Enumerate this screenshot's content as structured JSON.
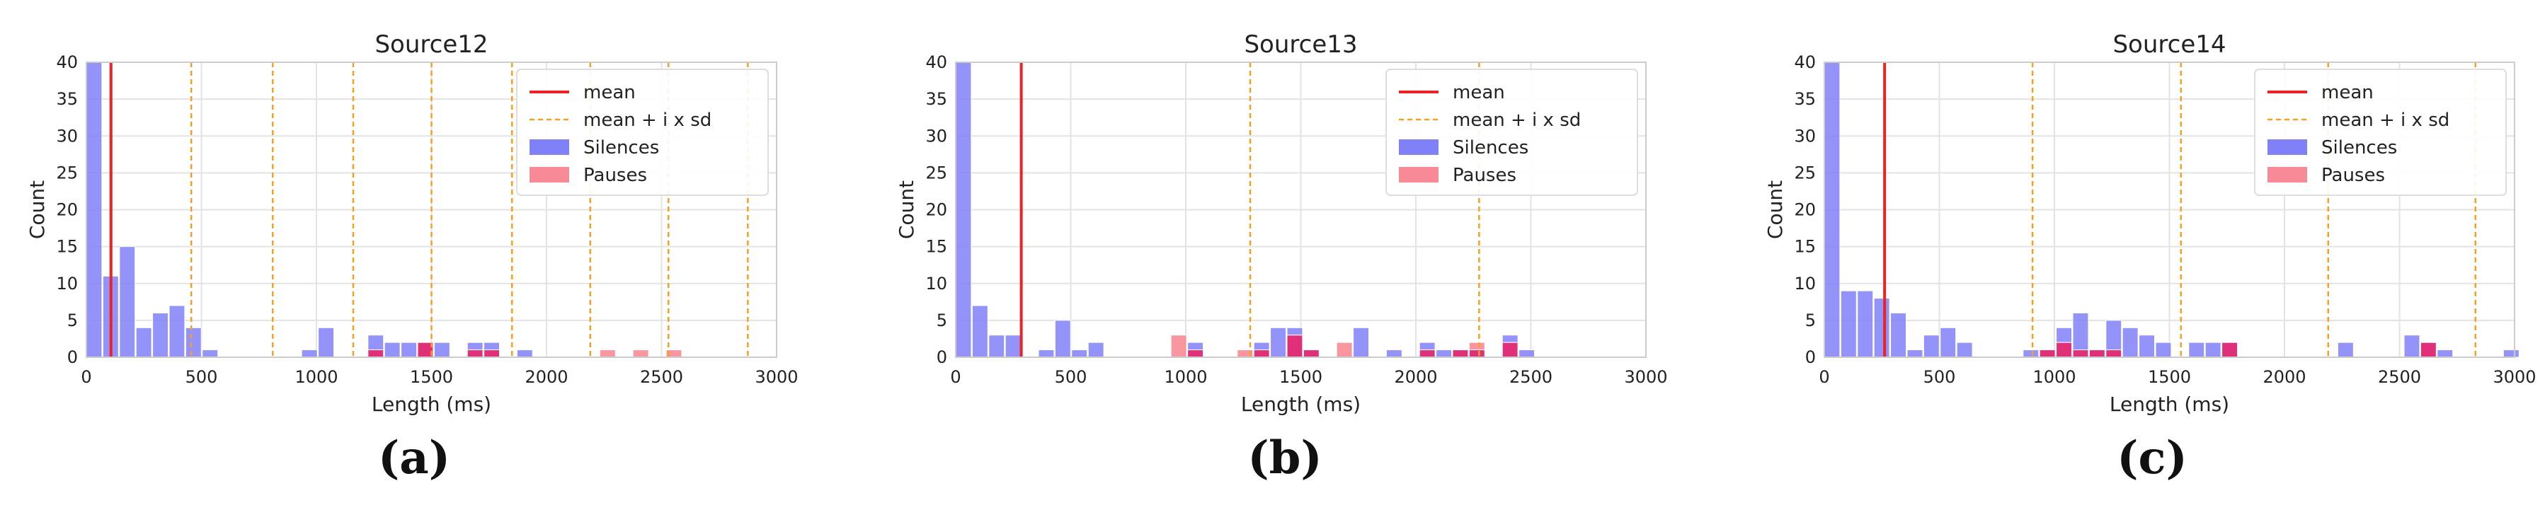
{
  "chart_data": [
    {
      "type": "bar",
      "panel_label": "(a)",
      "title": "Source12",
      "xlabel": "Length (ms)",
      "ylabel": "Count",
      "xlim": [
        0,
        3000
      ],
      "ylim": [
        0,
        40
      ],
      "xticks": [
        "0",
        "500",
        "1000",
        "1500",
        "2000",
        "2500",
        "3000"
      ],
      "yticks": [
        "0",
        "5",
        "10",
        "15",
        "20",
        "25",
        "30",
        "35",
        "40"
      ],
      "grid": true,
      "legend_position": "top-right",
      "legend": {
        "mean": "mean",
        "sd": "mean + i x sd",
        "silences": "Silences",
        "pauses": "Pauses"
      },
      "mean": 107,
      "sd_lines": [
        456,
        810,
        1160,
        1500,
        1850,
        2190,
        2530,
        2875
      ],
      "bin_width": 72,
      "series": [
        {
          "name": "Silences",
          "x": [
            0,
            72,
            144,
            216,
            288,
            360,
            432,
            504,
            576,
            936,
            1008,
            1224,
            1296,
            1368,
            1440,
            1512,
            1656,
            1728,
            1872
          ],
          "values": [
            40,
            11,
            15,
            4,
            6,
            7,
            4,
            1,
            0,
            1,
            4,
            3,
            2,
            2,
            2,
            2,
            2,
            2,
            1
          ]
        },
        {
          "name": "Pauses",
          "x": [
            1224,
            1440,
            1656,
            1728,
            2232,
            2376,
            2520
          ],
          "values": [
            1,
            2,
            1,
            1,
            1,
            1,
            1
          ]
        }
      ]
    },
    {
      "type": "bar",
      "panel_label": "(b)",
      "title": "Source13",
      "xlabel": "Length (ms)",
      "ylabel": "Count",
      "xlim": [
        0,
        3000
      ],
      "ylim": [
        0,
        40
      ],
      "xticks": [
        "0",
        "500",
        "1000",
        "1500",
        "2000",
        "2500",
        "3000"
      ],
      "yticks": [
        "0",
        "5",
        "10",
        "15",
        "20",
        "25",
        "30",
        "35",
        "40"
      ],
      "grid": true,
      "legend_position": "top-right",
      "legend": {
        "mean": "mean",
        "sd": "mean + i x sd",
        "silences": "Silences",
        "pauses": "Pauses"
      },
      "mean": 285,
      "sd_lines": [
        1280,
        2275
      ],
      "bin_width": 72,
      "series": [
        {
          "name": "Silences",
          "x": [
            0,
            72,
            144,
            216,
            288,
            360,
            432,
            504,
            576,
            1008,
            1296,
            1368,
            1440,
            1512,
            1584,
            1656,
            1728,
            1872,
            2016,
            2088,
            2160,
            2232,
            2376,
            2448
          ],
          "values": [
            40,
            7,
            3,
            3,
            0,
            1,
            5,
            1,
            2,
            2,
            2,
            4,
            4,
            1,
            0,
            0,
            4,
            1,
            2,
            1,
            1,
            1,
            3,
            1
          ]
        },
        {
          "name": "Pauses",
          "x": [
            936,
            1008,
            1224,
            1296,
            1440,
            1512,
            1656,
            2016,
            2160,
            2232,
            2376
          ],
          "values": [
            3,
            1,
            1,
            1,
            3,
            1,
            2,
            1,
            1,
            2,
            2
          ]
        }
      ]
    },
    {
      "type": "bar",
      "panel_label": "(c)",
      "title": "Source14",
      "xlabel": "Length (ms)",
      "ylabel": "Count",
      "xlim": [
        0,
        3000
      ],
      "ylim": [
        0,
        40
      ],
      "xticks": [
        "0",
        "500",
        "1000",
        "1500",
        "2000",
        "2500",
        "3000"
      ],
      "yticks": [
        "0",
        "5",
        "10",
        "15",
        "20",
        "25",
        "30",
        "35",
        "40"
      ],
      "grid": true,
      "legend_position": "top-right",
      "legend": {
        "mean": "mean",
        "sd": "mean + i x sd",
        "silences": "Silences",
        "pauses": "Pauses"
      },
      "mean": 262,
      "sd_lines": [
        905,
        1550,
        2190,
        2830
      ],
      "bin_width": 72,
      "series": [
        {
          "name": "Silences",
          "x": [
            0,
            72,
            144,
            216,
            288,
            360,
            432,
            504,
            576,
            648,
            864,
            936,
            1008,
            1080,
            1152,
            1224,
            1296,
            1368,
            1440,
            1584,
            1656,
            1728,
            2232,
            2520,
            2592,
            2664,
            2952
          ],
          "values": [
            40,
            9,
            9,
            8,
            6,
            1,
            3,
            4,
            2,
            0,
            1,
            1,
            4,
            6,
            1,
            5,
            4,
            3,
            2,
            2,
            2,
            2,
            2,
            3,
            2,
            1,
            1
          ]
        },
        {
          "name": "Pauses",
          "x": [
            936,
            1008,
            1080,
            1152,
            1224,
            1728,
            2592
          ],
          "values": [
            1,
            2,
            1,
            1,
            1,
            2,
            2
          ]
        }
      ]
    }
  ],
  "colors": {
    "silences": "#8080f8",
    "pauses": "#f88a95",
    "overlap": "#e0307a",
    "mean": "#ee2222",
    "sd": "#f5a020",
    "grid": "#e3e3e3",
    "axis": "#cccccc"
  }
}
